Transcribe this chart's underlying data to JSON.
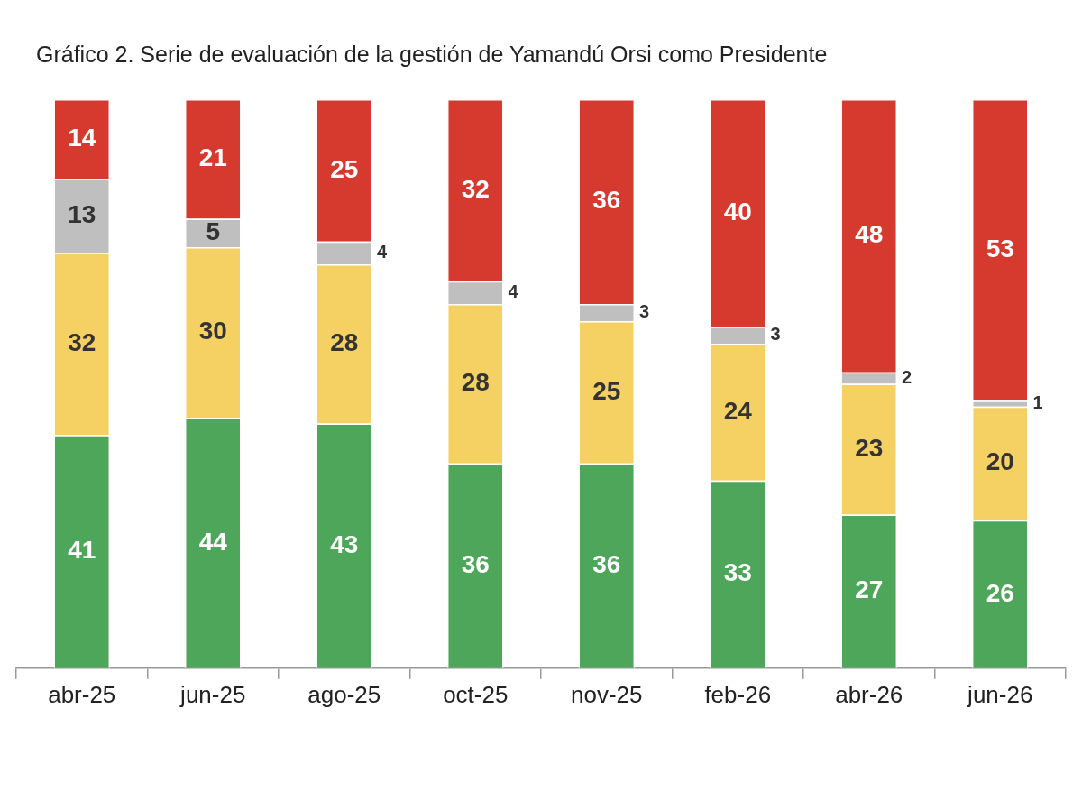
{
  "chart_data": {
    "type": "bar",
    "title": "Gráfico 2. Serie de evaluación de la gestión de Yamandú Orsi como Presidente",
    "categories": [
      "abr-25",
      "jun-25",
      "ago-25",
      "oct-25",
      "nov-25",
      "feb-26",
      "abr-26",
      "jun-26"
    ],
    "stacked": true,
    "data_labels": true,
    "grid": false,
    "legend": false,
    "tick_labels": "x",
    "series": [
      {
        "color": "#4ea65a",
        "values": [
          41,
          44,
          43,
          36,
          36,
          33,
          27,
          26
        ]
      },
      {
        "color": "#f5d164",
        "values": [
          32,
          30,
          28,
          28,
          25,
          24,
          23,
          20
        ]
      },
      {
        "color": "#bfbfbf",
        "values": [
          13,
          5,
          4,
          4,
          3,
          3,
          2,
          1
        ]
      },
      {
        "color": "#d63a2f",
        "values": [
          14,
          21,
          25,
          32,
          36,
          40,
          48,
          53
        ]
      }
    ]
  }
}
